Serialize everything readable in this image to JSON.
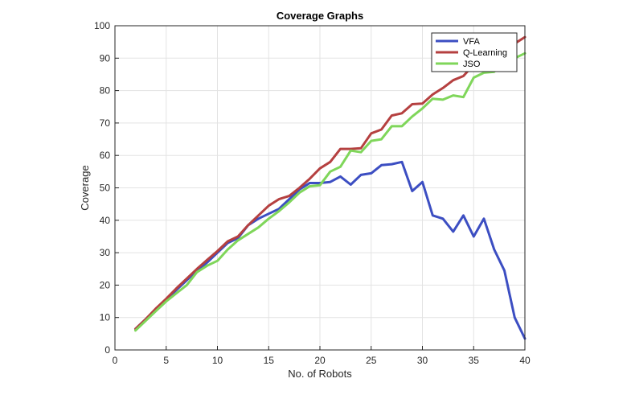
{
  "chart_data": {
    "type": "line",
    "title": "Coverage Graphs",
    "xlabel": "No. of Robots",
    "ylabel": "Coverage",
    "xlim": [
      0,
      40
    ],
    "ylim": [
      0,
      100
    ],
    "xticks": [
      0,
      5,
      10,
      15,
      20,
      25,
      30,
      35,
      40
    ],
    "yticks": [
      0,
      10,
      20,
      30,
      40,
      50,
      60,
      70,
      80,
      90,
      100
    ],
    "grid": true,
    "legend_position": "top-right",
    "series": [
      {
        "name": "VFA",
        "color": "#3c4ec2",
        "x": [
          2,
          3,
          4,
          5,
          6,
          7,
          8,
          9,
          10,
          11,
          12,
          13,
          14,
          15,
          16,
          17,
          18,
          19,
          20,
          21,
          22,
          23,
          24,
          25,
          26,
          27,
          28,
          29,
          30,
          31,
          32,
          33,
          34,
          35,
          36,
          37,
          38,
          39,
          40
        ],
        "y": [
          6.5,
          9.5,
          12.5,
          15.5,
          18.5,
          21.5,
          24.5,
          27,
          30,
          33,
          34.5,
          38.5,
          40.5,
          42,
          43.5,
          46.5,
          49.5,
          51.5,
          51.5,
          51.8,
          53.5,
          51,
          54,
          54.5,
          57,
          57.3,
          58,
          49,
          51.8,
          41.5,
          40.5,
          36.5,
          41.5,
          35,
          40.5,
          31,
          24.5,
          10,
          3.5
        ]
      },
      {
        "name": "Q-Learning",
        "color": "#b54040",
        "x": [
          2,
          3,
          4,
          5,
          6,
          7,
          8,
          9,
          10,
          11,
          12,
          13,
          14,
          15,
          16,
          17,
          18,
          19,
          20,
          21,
          22,
          23,
          24,
          25,
          26,
          27,
          28,
          29,
          30,
          31,
          32,
          33,
          34,
          35,
          36,
          37,
          38,
          39,
          40
        ],
        "y": [
          6.5,
          9.5,
          12.8,
          15.8,
          19,
          22,
          25,
          27.8,
          30.5,
          33.5,
          35,
          38.5,
          41.5,
          44.5,
          46.5,
          47.5,
          50,
          52.8,
          56,
          58,
          62,
          62,
          62.2,
          66.8,
          68,
          72.3,
          73,
          75.8,
          76,
          78.8,
          80.8,
          83.2,
          84.5,
          88,
          89,
          90.5,
          92,
          94.5,
          96.5
        ]
      },
      {
        "name": "JSO",
        "color": "#7fd65a",
        "x": [
          2,
          3,
          4,
          5,
          6,
          7,
          8,
          9,
          10,
          11,
          12,
          13,
          14,
          15,
          16,
          17,
          18,
          19,
          20,
          21,
          22,
          23,
          24,
          25,
          26,
          27,
          28,
          29,
          30,
          31,
          32,
          33,
          34,
          35,
          36,
          37,
          38,
          39,
          40
        ],
        "y": [
          6,
          9,
          12,
          15,
          17.5,
          20,
          24,
          26,
          27.5,
          31,
          33.8,
          35.8,
          37.8,
          40.5,
          42.8,
          45.5,
          48.5,
          50.5,
          50.8,
          55,
          56.5,
          61.5,
          61,
          64.5,
          65,
          69,
          69,
          72,
          74.5,
          77.5,
          77.2,
          78.5,
          78,
          84,
          85.5,
          85.8,
          88.8,
          90,
          91.5
        ]
      }
    ]
  }
}
